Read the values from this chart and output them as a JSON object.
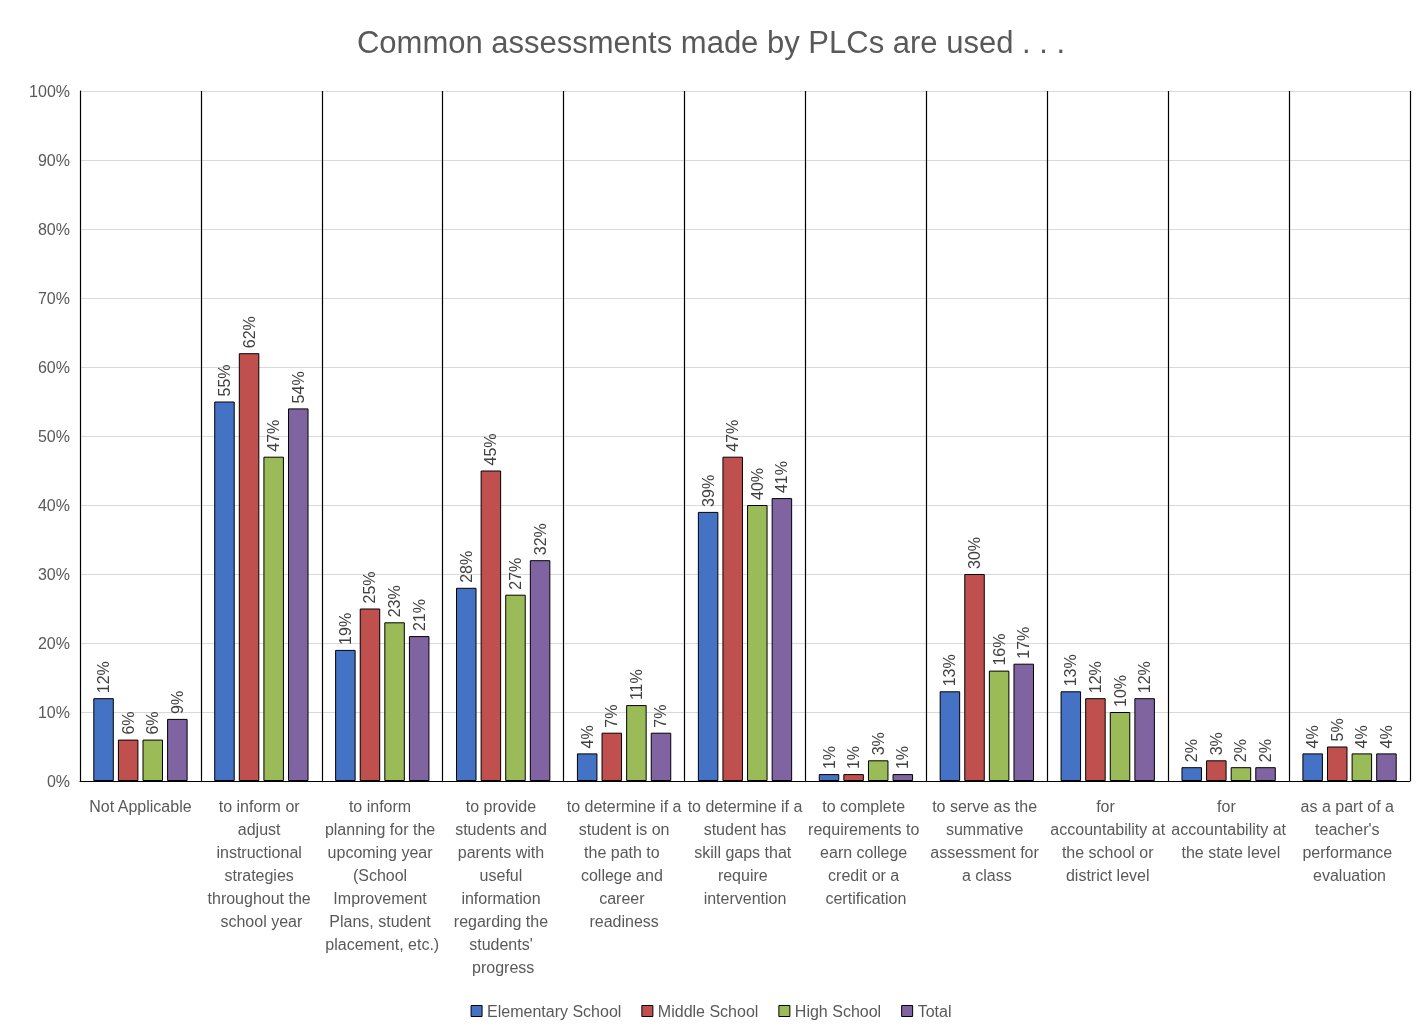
{
  "chart_data": {
    "type": "bar",
    "title": "Common assessments made by PLCs are used . . .",
    "categories": [
      "Not Applicable",
      "to inform or adjust instructional strategies throughout the school year",
      "to inform planning for the upcoming year (School Improvement Plans, student placement, etc.)",
      "to provide students and parents with useful information regarding the students' progress",
      "to determine if a student is on the path to college and career readiness",
      "to determine if a student has skill gaps that require intervention",
      "to complete requirements to earn college credit or a certification",
      "to serve as the summative assessment for a class",
      "for accountability at the school or district level",
      "for accountability at the state level",
      "as a part of a teacher's performance evaluation"
    ],
    "series": [
      {
        "name": "Elementary School",
        "color": "#4472c4",
        "values": [
          12,
          55,
          19,
          28,
          4,
          39,
          1,
          13,
          13,
          2,
          4
        ],
        "value_labels": [
          "12%",
          "55%",
          "19%",
          "28%",
          "4%",
          "39%",
          "1%",
          "13%",
          "13%",
          "2%",
          "4%"
        ]
      },
      {
        "name": "Middle School",
        "color": "#c0504d",
        "values": [
          6,
          62,
          25,
          45,
          7,
          47,
          1,
          30,
          12,
          3,
          5
        ],
        "value_labels": [
          "6%",
          "62%",
          "25%",
          "45%",
          "7%",
          "47%",
          "1%",
          "30%",
          "12%",
          "3%",
          "5%"
        ]
      },
      {
        "name": "High School",
        "color": "#9bbb59",
        "values": [
          6,
          47,
          23,
          27,
          11,
          40,
          3,
          16,
          10,
          2,
          4
        ],
        "value_labels": [
          "6%",
          "47%",
          "23%",
          "27%",
          "11%",
          "40%",
          "3%",
          "16%",
          "10%",
          "2%",
          "4%"
        ]
      },
      {
        "name": "Total",
        "color": "#8064a2",
        "values": [
          9,
          54,
          21,
          32,
          7,
          41,
          1,
          17,
          12,
          2,
          4
        ],
        "value_labels": [
          "9%",
          "54%",
          "21%",
          "32%",
          "7%",
          "41%",
          "1%",
          "17%",
          "12%",
          "2%",
          "4%"
        ]
      }
    ],
    "ylim": [
      0,
      100
    ],
    "yticks": [
      {
        "value": 0,
        "label": "0%"
      },
      {
        "value": 10,
        "label": "10%"
      },
      {
        "value": 20,
        "label": "20%"
      },
      {
        "value": 30,
        "label": "30%"
      },
      {
        "value": 40,
        "label": "40%"
      },
      {
        "value": 50,
        "label": "50%"
      },
      {
        "value": 60,
        "label": "60%"
      },
      {
        "value": 70,
        "label": "70%"
      },
      {
        "value": 80,
        "label": "80%"
      },
      {
        "value": 90,
        "label": "90%"
      },
      {
        "value": 100,
        "label": "100%"
      }
    ],
    "grid": true,
    "legend": "bottom"
  }
}
